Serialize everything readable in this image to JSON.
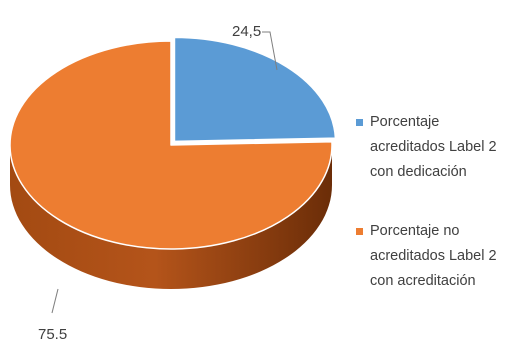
{
  "chart_data": {
    "type": "pie",
    "style": "3d",
    "start_angle": "12 o'clock",
    "title": "",
    "series": [
      {
        "name": "Porcentaje acreditados Label 2 con dedicación",
        "value": 24.5,
        "label": "24,5",
        "color": "#5b9bd5",
        "exploded": true
      },
      {
        "name": "Porcentaje no acreditados Label 2 con acreditación",
        "value": 75.5,
        "label": "75.5",
        "color": "#ed7d31",
        "exploded": false
      }
    ],
    "legend_position": "right"
  }
}
